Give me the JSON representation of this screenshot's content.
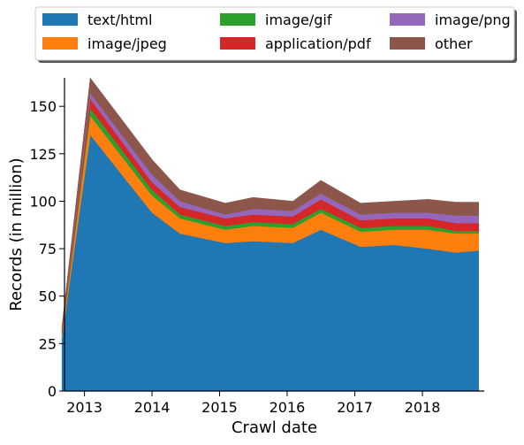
{
  "chart_data": {
    "type": "area",
    "stacked": true,
    "xlabel": "Crawl date",
    "ylabel": "Records (in million)",
    "ylim": [
      0,
      165
    ],
    "xlim": [
      "2012-09-15",
      "2018-12-01"
    ],
    "x_ticks": [
      "2013",
      "2014",
      "2015",
      "2016",
      "2017",
      "2018"
    ],
    "y_ticks": [
      0,
      25,
      50,
      75,
      100,
      125,
      150
    ],
    "grid": false,
    "legend_position": "top, above plot",
    "x": [
      "2012-09",
      "2013-02",
      "2014-01",
      "2014-06",
      "2015-02",
      "2015-07",
      "2016-02",
      "2016-07",
      "2017-02",
      "2017-08",
      "2018-02",
      "2018-07",
      "2018-11"
    ],
    "series": [
      {
        "name": "text/html",
        "color": "#1f77b4",
        "values": [
          28,
          135,
          94,
          83,
          78,
          79,
          78,
          85,
          76,
          77,
          75,
          73,
          74
        ]
      },
      {
        "name": "image/jpeg",
        "color": "#ff7f0e",
        "values": [
          1.5,
          10,
          9,
          8,
          7,
          8,
          8,
          9,
          8,
          8,
          10,
          10,
          9
        ]
      },
      {
        "name": "image/gif",
        "color": "#2ca02c",
        "values": [
          0.8,
          4,
          3,
          2,
          2,
          2,
          2,
          2,
          2,
          2,
          2,
          1.5,
          1.5
        ]
      },
      {
        "name": "application/pdf",
        "color": "#d62728",
        "values": [
          0.8,
          5,
          4,
          4,
          4,
          4,
          4,
          5,
          4,
          4,
          4,
          4,
          4
        ]
      },
      {
        "name": "image/png",
        "color": "#9467bd",
        "values": [
          0.5,
          3,
          4,
          3,
          2,
          3,
          3,
          3,
          3,
          3,
          3,
          4,
          4
        ]
      },
      {
        "name": "other",
        "color": "#8c564b",
        "values": [
          2.4,
          8,
          8,
          6,
          6,
          6,
          5,
          7,
          6,
          6,
          7,
          7,
          7
        ]
      }
    ]
  }
}
